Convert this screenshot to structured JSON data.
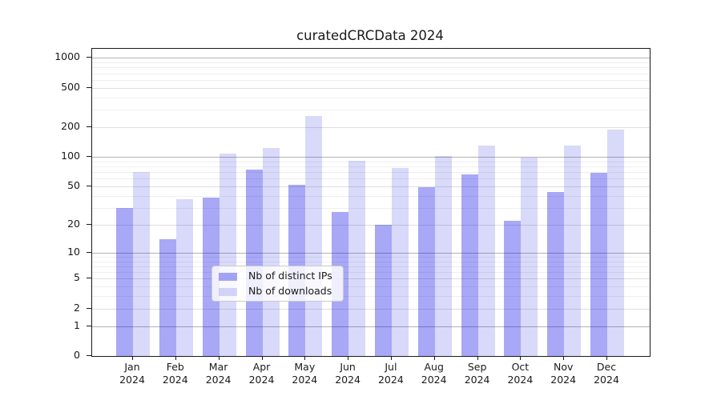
{
  "title": "curatedCRCData 2024",
  "chart_data": {
    "type": "bar",
    "title": "curatedCRCData 2024",
    "categories": [
      "Jan",
      "Feb",
      "Mar",
      "Apr",
      "May",
      "Jun",
      "Jul",
      "Aug",
      "Sep",
      "Oct",
      "Nov",
      "Dec"
    ],
    "year_label": "2024",
    "series": [
      {
        "name": "Nb of distinct IPs",
        "color": "rgba(0,0,230,0.34)",
        "values": [
          30,
          14,
          38,
          74,
          52,
          27,
          20,
          49,
          66,
          22,
          44,
          69
        ]
      },
      {
        "name": "Nb of downloads",
        "color": "rgba(0,0,215,0.15)",
        "values": [
          70,
          37,
          108,
          124,
          260,
          92,
          77,
          103,
          130,
          98,
          130,
          188
        ]
      }
    ],
    "yscale": "log1p",
    "yticks": [
      0,
      1,
      2,
      5,
      10,
      20,
      50,
      100,
      200,
      500,
      1000
    ],
    "ylim": [
      0,
      1100
    ],
    "xlabel": "",
    "ylabel": "",
    "grid": "both-horizontal",
    "legend_position": "lower center"
  }
}
